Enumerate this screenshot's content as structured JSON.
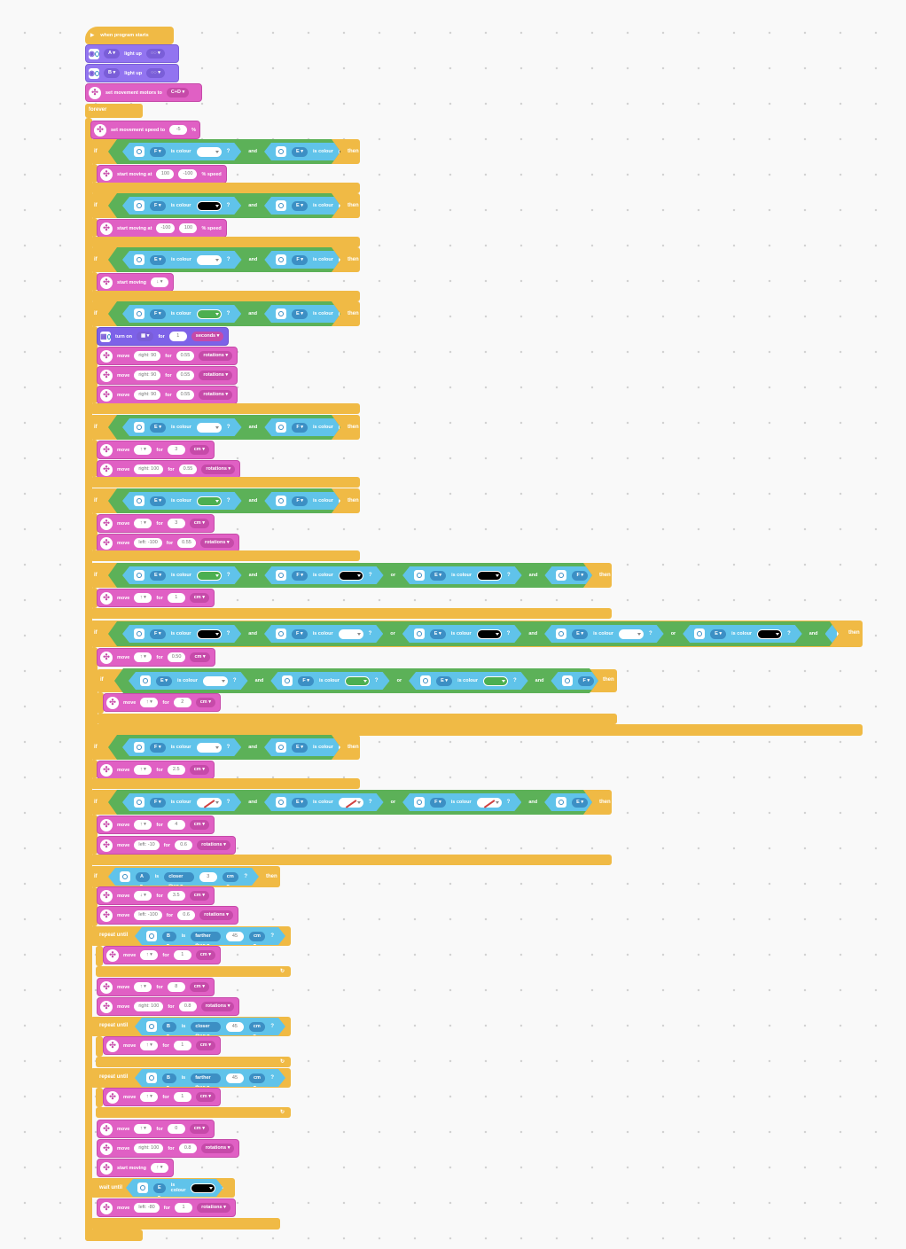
{
  "program": {
    "hat": "when program starts",
    "setup": [
      {
        "kind": "light",
        "port": "A",
        "text": "light up",
        "mode": "light-icon"
      },
      {
        "kind": "light",
        "port": "B",
        "text": "light up",
        "mode": "light-icon"
      },
      {
        "kind": "motor",
        "text": "set movement motors to",
        "value": "C+D"
      }
    ],
    "forever": "forever",
    "speed": {
      "text": "set movement speed to",
      "value": "-5",
      "unit": "%"
    },
    "if_label": "if",
    "then_label": "then",
    "and_label": "and",
    "or_label": "or",
    "is_colour": "is colour",
    "repeat_until": "repeat until",
    "wait_until": "wait until",
    "if_blocks": [
      {
        "cond": [
          [
            "F",
            "white"
          ],
          [
            "E",
            "black"
          ]
        ],
        "body": [
          {
            "kind": "motor",
            "parts": [
              "start moving at",
              "100",
              "-100",
              "% speed"
            ]
          }
        ]
      },
      {
        "cond": [
          [
            "F",
            "black"
          ],
          [
            "E",
            "white"
          ]
        ],
        "body": [
          {
            "kind": "motor",
            "parts": [
              "start moving at",
              "-100",
              "100",
              "% speed"
            ]
          }
        ]
      },
      {
        "cond": [
          [
            "E",
            "white"
          ],
          [
            "F",
            "white"
          ]
        ],
        "body": [
          {
            "kind": "motor",
            "parts": [
              "start moving",
              "↓"
            ]
          }
        ]
      },
      {
        "cond": [
          [
            "F",
            "green"
          ],
          [
            "E",
            "green"
          ]
        ],
        "body": [
          {
            "kind": "disp",
            "parts": [
              "turn on",
              "matrix",
              "for",
              "1",
              "seconds"
            ]
          },
          {
            "kind": "motor",
            "parts": [
              "move",
              "right: 90",
              "for",
              "0.55",
              "rotations"
            ]
          },
          {
            "kind": "motor",
            "parts": [
              "move",
              "right: 90",
              "for",
              "0.55",
              "rotations"
            ]
          },
          {
            "kind": "motor",
            "parts": [
              "move",
              "right: 90",
              "for",
              "0.55",
              "rotations"
            ]
          }
        ]
      },
      {
        "cond": [
          [
            "E",
            "white"
          ],
          [
            "F",
            "green"
          ]
        ],
        "body": [
          {
            "kind": "motor",
            "parts": [
              "move",
              "↑",
              "for",
              "3",
              "cm"
            ]
          },
          {
            "kind": "motor",
            "parts": [
              "move",
              "right: 100",
              "for",
              "0.55",
              "rotations"
            ]
          }
        ]
      },
      {
        "cond": [
          [
            "E",
            "green"
          ],
          [
            "F",
            "white"
          ]
        ],
        "body": [
          {
            "kind": "motor",
            "parts": [
              "move",
              "↑",
              "for",
              "3",
              "cm"
            ]
          },
          {
            "kind": "motor",
            "parts": [
              "move",
              "left: -100",
              "for",
              "0.55",
              "rotations"
            ]
          }
        ]
      }
    ],
    "if7": {
      "cond": [
        [
          "E",
          "green"
        ],
        [
          "F",
          "black"
        ],
        [
          "E",
          "black"
        ],
        [
          "F",
          "green"
        ]
      ],
      "body": [
        {
          "kind": "motor",
          "parts": [
            "move",
            "↑",
            "for",
            "1",
            "cm"
          ]
        }
      ]
    },
    "if8": {
      "cond": [
        [
          "F",
          "black"
        ],
        [
          "F",
          "white"
        ],
        [
          "E",
          "black"
        ],
        [
          "E",
          "white"
        ],
        [
          "E",
          "black"
        ],
        [
          "F",
          "black"
        ]
      ],
      "body": [
        {
          "kind": "motor",
          "parts": [
            "move",
            "↑",
            "for",
            "0.50",
            "cm"
          ]
        }
      ],
      "nested": {
        "cond": [
          [
            "E",
            "white"
          ],
          [
            "F",
            "green"
          ],
          [
            "E",
            "green"
          ],
          [
            "F",
            "white"
          ]
        ],
        "body": [
          {
            "kind": "motor",
            "parts": [
              "move",
              "↑",
              "for",
              "2",
              "cm"
            ]
          }
        ]
      }
    },
    "if9": {
      "cond": [
        [
          "F",
          "white"
        ],
        [
          "E",
          "white"
        ]
      ],
      "body": [
        {
          "kind": "motor",
          "parts": [
            "move",
            "↑",
            "for",
            "2.5",
            "cm"
          ]
        }
      ]
    },
    "if10": {
      "cond": [
        [
          "F",
          "none"
        ],
        [
          "E",
          "none"
        ],
        [
          "F",
          "none"
        ],
        [
          "E",
          "none"
        ]
      ],
      "body": [
        {
          "kind": "motor",
          "parts": [
            "move",
            "↑",
            "for",
            "4",
            "cm"
          ]
        },
        {
          "kind": "motor",
          "parts": [
            "move",
            "left: -10",
            "for",
            "0.6",
            "rotations"
          ]
        }
      ]
    },
    "if11": {
      "dist": {
        "port": "A",
        "rel": "closer than",
        "val": "3",
        "unit": "cm"
      },
      "body": [
        {
          "kind": "motor",
          "parts": [
            "move",
            "↓",
            "for",
            "3.5",
            "cm"
          ]
        },
        {
          "kind": "motor",
          "parts": [
            "move",
            "left: -100",
            "for",
            "0.6",
            "rotations"
          ]
        }
      ]
    },
    "repeat1": {
      "dist": {
        "port": "B",
        "rel": "farther than",
        "val": "45",
        "unit": "cm"
      },
      "body": [
        {
          "kind": "motor",
          "parts": [
            "move",
            "↑",
            "for",
            "1",
            "cm"
          ]
        }
      ]
    },
    "after_repeat1": [
      {
        "kind": "motor",
        "parts": [
          "move",
          "↑",
          "for",
          "8",
          "cm"
        ]
      },
      {
        "kind": "motor",
        "parts": [
          "move",
          "right: 100",
          "for",
          "0.8",
          "rotations"
        ]
      }
    ],
    "repeat2": {
      "dist": {
        "port": "B",
        "rel": "closer than",
        "val": "45",
        "unit": "cm"
      },
      "body": [
        {
          "kind": "motor",
          "parts": [
            "move",
            "↑",
            "for",
            "1",
            "cm"
          ]
        }
      ]
    },
    "repeat3": {
      "dist": {
        "port": "B",
        "rel": "farther than",
        "val": "45",
        "unit": "cm"
      },
      "body": [
        {
          "kind": "motor",
          "parts": [
            "move",
            "↑",
            "for",
            "1",
            "cm"
          ]
        }
      ]
    },
    "after_repeat3": [
      {
        "kind": "motor",
        "parts": [
          "move",
          "↑",
          "for",
          "0",
          "cm"
        ]
      },
      {
        "kind": "motor",
        "parts": [
          "move",
          "right: 100",
          "for",
          "0.8",
          "rotations"
        ]
      },
      {
        "kind": "motor",
        "parts": [
          "start moving",
          "↑"
        ]
      }
    ],
    "wait": {
      "cond": [
        "E",
        "black"
      ]
    },
    "final": {
      "kind": "motor",
      "parts": [
        "move",
        "left: -80",
        "for",
        "1",
        "rotations"
      ]
    }
  },
  "colors": {
    "motor": "#e060c4",
    "control": "#f0ba45",
    "sensor": "#60c3ea",
    "operator": "#5cb158",
    "light": "#9274f0"
  }
}
